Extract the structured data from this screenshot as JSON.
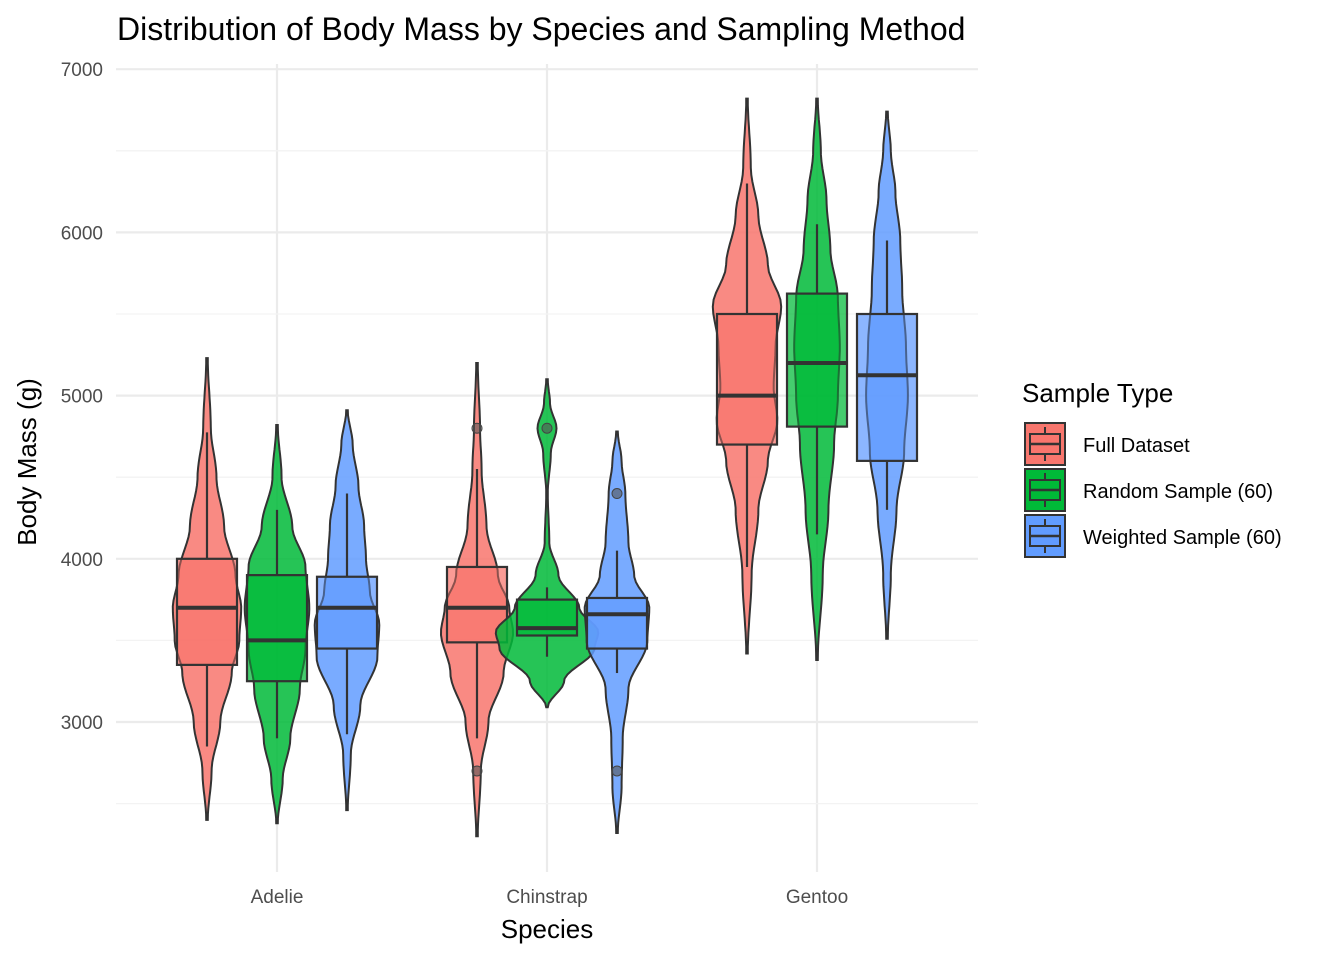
{
  "chart_data": {
    "type": "violin+box",
    "title": "Distribution of Body Mass by Species and Sampling Method",
    "xlabel": "Species",
    "ylabel": "Body Mass (g)",
    "ylim": [
      2100,
      7100
    ],
    "y_ticks": [
      3000,
      4000,
      5000,
      6000,
      7000
    ],
    "categories": [
      "Adelie",
      "Chinstrap",
      "Gentoo"
    ],
    "grid": true,
    "legend": {
      "title": "Sample Type",
      "position": "right"
    },
    "series": [
      {
        "name": "Full Dataset",
        "color": "#F8766D",
        "data": [
          {
            "category": "Adelie",
            "min": 2850,
            "q1": 3350,
            "median": 3700,
            "q3": 4000,
            "max": 4775,
            "outliers": [],
            "violin": {
              "min": 2400,
              "max": 5230,
              "profile": [
                [
                  2400,
                  0.02
                ],
                [
                  2700,
                  0.12
                ],
                [
                  3000,
                  0.35
                ],
                [
                  3300,
                  0.65
                ],
                [
                  3500,
                  0.85
                ],
                [
                  3700,
                  0.9
                ],
                [
                  3900,
                  0.75
                ],
                [
                  4200,
                  0.45
                ],
                [
                  4500,
                  0.25
                ],
                [
                  4800,
                  0.1
                ],
                [
                  5230,
                  0.02
                ]
              ]
            }
          },
          {
            "category": "Chinstrap",
            "min": 2900,
            "q1": 3488,
            "median": 3700,
            "q3": 3950,
            "max": 4550,
            "outliers": [
              2700,
              4800
            ],
            "violin": {
              "min": 2300,
              "max": 5200,
              "profile": [
                [
                  2300,
                  0.02
                ],
                [
                  2700,
                  0.1
                ],
                [
                  3000,
                  0.3
                ],
                [
                  3300,
                  0.7
                ],
                [
                  3550,
                  0.95
                ],
                [
                  3700,
                  0.85
                ],
                [
                  3900,
                  0.55
                ],
                [
                  4200,
                  0.25
                ],
                [
                  4550,
                  0.12
                ],
                [
                  4800,
                  0.08
                ],
                [
                  5200,
                  0.02
                ]
              ]
            }
          },
          {
            "category": "Gentoo",
            "min": 3950,
            "q1": 4700,
            "median": 5000,
            "q3": 5500,
            "max": 6300,
            "outliers": [],
            "violin": {
              "min": 3420,
              "max": 6820,
              "profile": [
                [
                  3420,
                  0.02
                ],
                [
                  3900,
                  0.12
                ],
                [
                  4300,
                  0.3
                ],
                [
                  4600,
                  0.55
                ],
                [
                  4850,
                  0.8
                ],
                [
                  5050,
                  0.7
                ],
                [
                  5300,
                  0.75
                ],
                [
                  5550,
                  0.9
                ],
                [
                  5800,
                  0.55
                ],
                [
                  6100,
                  0.3
                ],
                [
                  6400,
                  0.1
                ],
                [
                  6820,
                  0.02
                ]
              ]
            }
          }
        ]
      },
      {
        "name": "Random Sample (60)",
        "color": "#00BA38",
        "data": [
          {
            "category": "Adelie",
            "min": 2900,
            "q1": 3250,
            "median": 3500,
            "q3": 3900,
            "max": 4300,
            "outliers": [],
            "violin": {
              "min": 2380,
              "max": 4820,
              "profile": [
                [
                  2380,
                  0.02
                ],
                [
                  2650,
                  0.15
                ],
                [
                  2900,
                  0.35
                ],
                [
                  3200,
                  0.6
                ],
                [
                  3450,
                  0.75
                ],
                [
                  3700,
                  0.85
                ],
                [
                  3950,
                  0.75
                ],
                [
                  4200,
                  0.4
                ],
                [
                  4500,
                  0.12
                ],
                [
                  4820,
                  0.02
                ]
              ]
            }
          },
          {
            "category": "Chinstrap",
            "min": 3400,
            "q1": 3530,
            "median": 3575,
            "q3": 3750,
            "max": 3825,
            "outliers": [
              4800
            ],
            "violin": {
              "min": 3090,
              "max": 5100,
              "profile": [
                [
                  3090,
                  0.02
                ],
                [
                  3250,
                  0.45
                ],
                [
                  3450,
                  1.25
                ],
                [
                  3550,
                  1.35
                ],
                [
                  3700,
                  0.85
                ],
                [
                  3900,
                  0.3
                ],
                [
                  4100,
                  0.06
                ],
                [
                  4400,
                  0.02
                ],
                [
                  4650,
                  0.1
                ],
                [
                  4800,
                  0.25
                ],
                [
                  4950,
                  0.08
                ],
                [
                  5100,
                  0.02
                ]
              ]
            }
          },
          {
            "category": "Gentoo",
            "min": 4150,
            "q1": 4810,
            "median": 5200,
            "q3": 5625,
            "max": 6050,
            "outliers": [],
            "violin": {
              "min": 3380,
              "max": 6820,
              "profile": [
                [
                  3380,
                  0.02
                ],
                [
                  3900,
                  0.15
                ],
                [
                  4300,
                  0.3
                ],
                [
                  4700,
                  0.45
                ],
                [
                  5000,
                  0.55
                ],
                [
                  5300,
                  0.6
                ],
                [
                  5600,
                  0.55
                ],
                [
                  5900,
                  0.35
                ],
                [
                  6200,
                  0.25
                ],
                [
                  6500,
                  0.1
                ],
                [
                  6820,
                  0.02
                ]
              ]
            }
          }
        ]
      },
      {
        "name": "Weighted Sample (60)",
        "color": "#619CFF",
        "data": [
          {
            "category": "Adelie",
            "min": 2925,
            "q1": 3450,
            "median": 3700,
            "q3": 3890,
            "max": 4400,
            "outliers": [],
            "violin": {
              "min": 2460,
              "max": 4910,
              "profile": [
                [
                  2460,
                  0.02
                ],
                [
                  2800,
                  0.1
                ],
                [
                  3100,
                  0.35
                ],
                [
                  3400,
                  0.8
                ],
                [
                  3600,
                  0.85
                ],
                [
                  3800,
                  0.6
                ],
                [
                  4000,
                  0.5
                ],
                [
                  4200,
                  0.45
                ],
                [
                  4450,
                  0.3
                ],
                [
                  4700,
                  0.15
                ],
                [
                  4910,
                  0.02
                ]
              ]
            }
          },
          {
            "category": "Chinstrap",
            "min": 3300,
            "q1": 3450,
            "median": 3660,
            "q3": 3760,
            "max": 4050,
            "outliers": [
              2700,
              4400
            ],
            "violin": {
              "min": 2320,
              "max": 4780,
              "profile": [
                [
                  2320,
                  0.02
                ],
                [
                  2600,
                  0.12
                ],
                [
                  2900,
                  0.15
                ],
                [
                  3200,
                  0.3
                ],
                [
                  3500,
                  0.8
                ],
                [
                  3700,
                  0.85
                ],
                [
                  3900,
                  0.45
                ],
                [
                  4100,
                  0.3
                ],
                [
                  4400,
                  0.22
                ],
                [
                  4600,
                  0.12
                ],
                [
                  4780,
                  0.02
                ]
              ]
            }
          },
          {
            "category": "Gentoo",
            "min": 4300,
            "q1": 4600,
            "median": 5125,
            "q3": 5500,
            "max": 5950,
            "outliers": [],
            "violin": {
              "min": 3510,
              "max": 6740,
              "profile": [
                [
                  3510,
                  0.02
                ],
                [
                  3900,
                  0.1
                ],
                [
                  4300,
                  0.25
                ],
                [
                  4650,
                  0.45
                ],
                [
                  5000,
                  0.55
                ],
                [
                  5300,
                  0.5
                ],
                [
                  5650,
                  0.4
                ],
                [
                  5950,
                  0.35
                ],
                [
                  6250,
                  0.22
                ],
                [
                  6500,
                  0.1
                ],
                [
                  6740,
                  0.02
                ]
              ]
            }
          }
        ]
      }
    ]
  }
}
